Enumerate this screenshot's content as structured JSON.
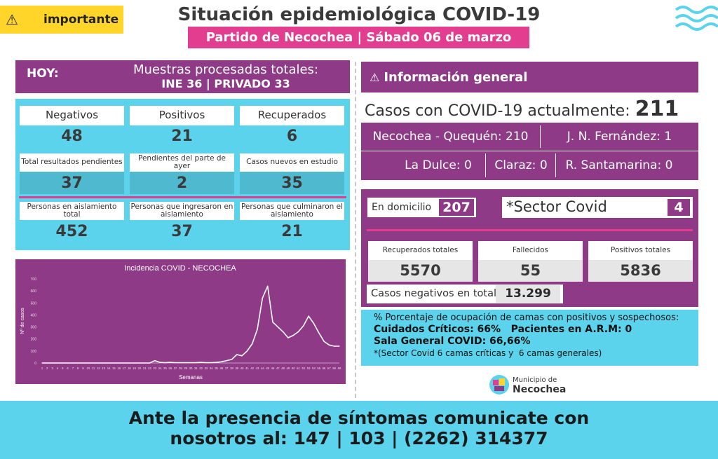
{
  "header": {
    "badge_label": "importante",
    "title": "Situación epidemiológica COVID-19",
    "subtitle": "Partido de Necochea | Sábado 06 de marzo"
  },
  "hoy": {
    "label": "HOY:",
    "line1": "Muestras procesadas totales:",
    "line2": "INE 36 | PRIVADO 33"
  },
  "today_stats": [
    {
      "label": "Negativos",
      "value": "48"
    },
    {
      "label": "Positivos",
      "value": "21"
    },
    {
      "label": "Recuperados",
      "value": "6"
    },
    {
      "label": "Total resultados pendientes",
      "value": "37"
    },
    {
      "label": "Pendientes del parte de ayer",
      "value": "2"
    },
    {
      "label": "Casos nuevos en estudio",
      "value": "35"
    },
    {
      "label": "Personas en aislamiento total",
      "value": "452"
    },
    {
      "label": "Personas que ingresaron en aislamiento",
      "value": "37"
    },
    {
      "label": "Personas que culminaron el aislamiento",
      "value": "21"
    }
  ],
  "chart_data": {
    "type": "line",
    "title": "Incidencia COVID - NECOCHEA",
    "xlabel": "Semanas",
    "ylabel": "Nº de casos",
    "ylim": [
      0,
      700
    ],
    "yticks": [
      0,
      100,
      200,
      300,
      400,
      500,
      600,
      700
    ],
    "x": [
      1,
      2,
      3,
      4,
      5,
      6,
      7,
      8,
      9,
      10,
      11,
      12,
      13,
      14,
      15,
      16,
      17,
      18,
      19,
      20,
      21,
      22,
      23,
      24,
      25,
      26,
      27,
      28,
      29,
      30,
      31,
      32,
      33,
      34,
      35,
      36,
      37,
      38,
      39,
      40,
      41,
      42,
      43,
      44,
      45,
      46,
      47,
      48,
      49,
      50,
      51,
      52,
      53,
      54,
      55,
      56,
      57,
      58,
      59
    ],
    "series": [
      {
        "values": [
          0,
          0,
          0,
          0,
          0,
          0,
          0,
          0,
          0,
          0,
          0,
          0,
          0,
          0,
          0,
          0,
          0,
          0,
          0,
          0,
          0,
          0,
          20,
          5,
          3,
          5,
          3,
          3,
          3,
          3,
          3,
          5,
          3,
          3,
          5,
          10,
          20,
          30,
          70,
          60,
          100,
          160,
          280,
          540,
          640,
          340,
          300,
          260,
          210,
          230,
          260,
          310,
          390,
          330,
          250,
          180,
          150,
          140,
          140
        ]
      }
    ],
    "grid": false
  },
  "info": {
    "heading": "Información general",
    "casos_label": "Casos con COVID-19 actualmente:",
    "casos_value": "211",
    "locations_row1": [
      "Necochea - Quequén: 210",
      "J. N. Fernández: 1"
    ],
    "locations_row2": [
      "La Dulce: 0",
      "Claraz: 0",
      "R. Santamarina: 0"
    ],
    "domicilio_label": "En domicilio",
    "domicilio_value": "207",
    "sector_label": "*Sector Covid",
    "sector_value": "4",
    "totals": [
      {
        "label": "Recuperados totales",
        "value": "5570"
      },
      {
        "label": "Fallecidos",
        "value": "55"
      },
      {
        "label": "Positivos totales",
        "value": "5836"
      }
    ],
    "neg_label": "Casos negativos en total",
    "neg_value": "13.299"
  },
  "beds": {
    "line1": "% Porcentaje de ocupación de camas con positivos y sospechosos:",
    "line2": "Cuidados Críticos: 66%   Pacientes en A.R.M: 0",
    "line3": "Sala General COVID: 66,66%",
    "line4": "*(Sector Covid 6 camas críticas y  6 camas generales)"
  },
  "logo": {
    "line1": "Municipio de",
    "line2": "Necochea"
  },
  "footer": {
    "line1": "Ante la presencia de síntomas comunicate con",
    "line2": "nosotros al: 147 | 103 | (2262) 314377"
  },
  "colors": {
    "purple": "#8e3a86",
    "cyan": "#5bd3ec",
    "pink": "#e23d8f",
    "yellow": "#ffd52a"
  }
}
